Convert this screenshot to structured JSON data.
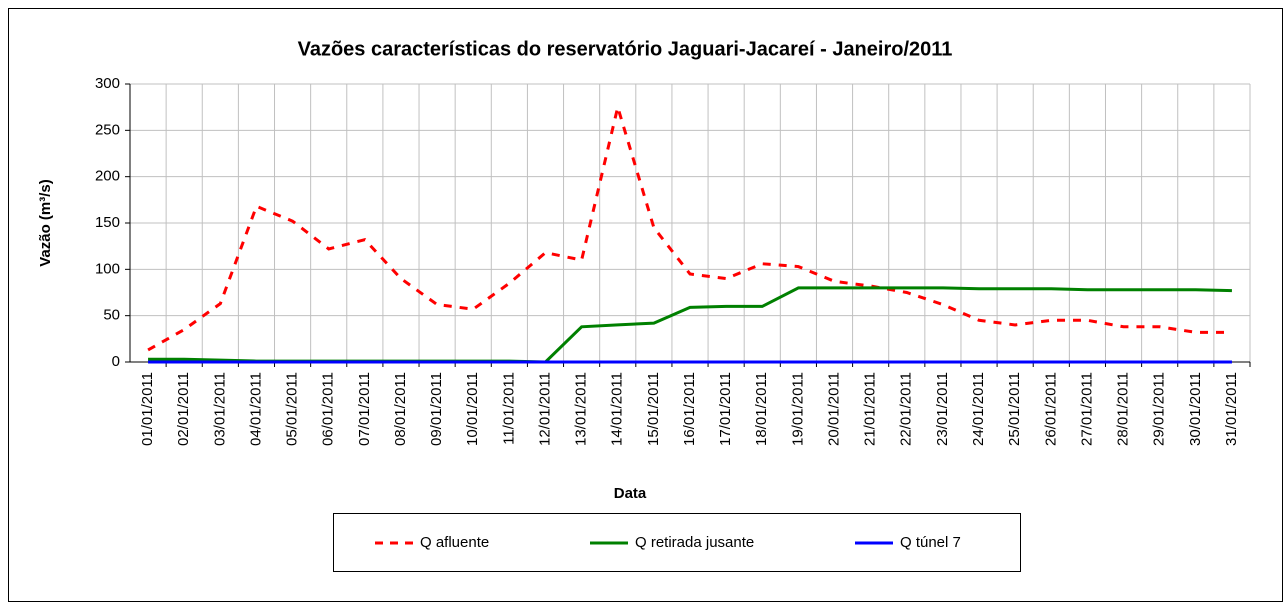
{
  "chart_data": {
    "type": "line",
    "title": "Vazões características do  reservatório Jaguari-Jacareí - Janeiro/2011",
    "x_label": "Data",
    "y_label": "Vazão (m³/s)",
    "categories": [
      "01/01/2011",
      "02/01/2011",
      "03/01/2011",
      "04/01/2011",
      "05/01/2011",
      "06/01/2011",
      "07/01/2011",
      "08/01/2011",
      "09/01/2011",
      "10/01/2011",
      "11/01/2011",
      "12/01/2011",
      "13/01/2011",
      "14/01/2011",
      "15/01/2011",
      "16/01/2011",
      "17/01/2011",
      "18/01/2011",
      "19/01/2011",
      "20/01/2011",
      "21/01/2011",
      "22/01/2011",
      "23/01/2011",
      "24/01/2011",
      "25/01/2011",
      "26/01/2011",
      "27/01/2011",
      "28/01/2011",
      "29/01/2011",
      "30/01/2011",
      "31/01/2011"
    ],
    "series": [
      {
        "name": "Q afluente",
        "color": "#ff0000",
        "style": "dashed",
        "values": [
          13,
          35,
          63,
          168,
          152,
          122,
          132,
          90,
          62,
          57,
          85,
          118,
          110,
          275,
          145,
          95,
          90,
          106,
          103,
          87,
          82,
          75,
          62,
          45,
          40,
          45,
          45,
          38,
          38,
          32,
          32
        ]
      },
      {
        "name": "Q retirada jusante",
        "color": "#008000",
        "style": "solid",
        "values": [
          3,
          3,
          2,
          1,
          1,
          1,
          1,
          1,
          1,
          1,
          1,
          0,
          38,
          40,
          42,
          59,
          60,
          60,
          80,
          80,
          80,
          80,
          80,
          79,
          79,
          79,
          78,
          78,
          78,
          78,
          77
        ]
      },
      {
        "name": "Q túnel 7",
        "color": "#0000ff",
        "style": "solid",
        "values": [
          0,
          0,
          0,
          0,
          0,
          0,
          0,
          0,
          0,
          0,
          0,
          0,
          0,
          0,
          0,
          0,
          0,
          0,
          0,
          0,
          0,
          0,
          0,
          0,
          0,
          0,
          0,
          0,
          0,
          0,
          0
        ]
      }
    ],
    "ylim": [
      0,
      300
    ],
    "yticks": [
      0,
      50,
      100,
      150,
      200,
      250,
      300
    ],
    "grid": true,
    "legend": "bottom"
  }
}
